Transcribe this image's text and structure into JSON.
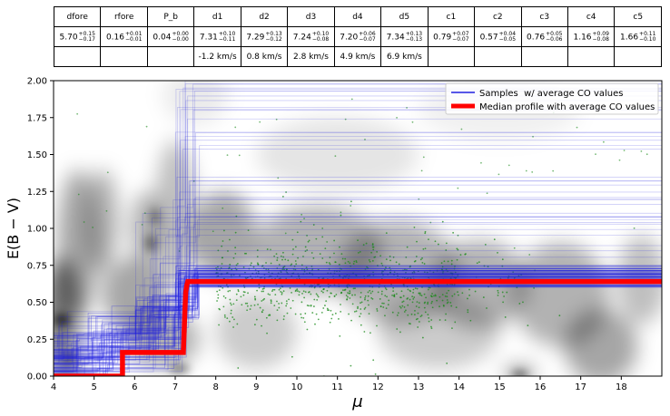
{
  "table": {
    "headers": [
      "dfore",
      "rfore",
      "P_b",
      "d1",
      "d2",
      "d3",
      "d4",
      "d5",
      "c1",
      "c2",
      "c3",
      "c4",
      "c5"
    ],
    "values": [
      {
        "v": "5.70",
        "up": "+0.15",
        "lo": "−0.17"
      },
      {
        "v": "0.16",
        "up": "+0.01",
        "lo": "−0.01"
      },
      {
        "v": "0.04",
        "up": "+0.00",
        "lo": "−0.00"
      },
      {
        "v": "7.31",
        "up": "+0.10",
        "lo": "−0.11"
      },
      {
        "v": "7.29",
        "up": "+0.13",
        "lo": "−0.12"
      },
      {
        "v": "7.24",
        "up": "+0.10",
        "lo": "−0.08"
      },
      {
        "v": "7.20",
        "up": "+0.06",
        "lo": "−0.07"
      },
      {
        "v": "7.34",
        "up": "+0.13",
        "lo": "−0.13"
      },
      {
        "v": "0.79",
        "up": "+0.07",
        "lo": "−0.07"
      },
      {
        "v": "0.57",
        "up": "+0.04",
        "lo": "−0.05"
      },
      {
        "v": "0.76",
        "up": "+0.05",
        "lo": "−0.06"
      },
      {
        "v": "1.16",
        "up": "+0.09",
        "lo": "−0.08"
      },
      {
        "v": "1.66",
        "up": "+0.11",
        "lo": "−0.10"
      }
    ],
    "velocities": [
      "",
      "",
      "",
      "-1.2 km/s",
      "0.8 km/s",
      "2.8 km/s",
      "4.9 km/s",
      "6.9 km/s",
      "",
      "",
      "",
      "",
      ""
    ]
  },
  "chart_data": {
    "type": "line",
    "xlabel": "μ",
    "ylabel": "E(B − V)",
    "xlim": [
      4,
      19
    ],
    "ylim": [
      0,
      2
    ],
    "xticks": [
      "4",
      "5",
      "6",
      "7",
      "8",
      "9",
      "10",
      "11",
      "12",
      "13",
      "14",
      "15",
      "16",
      "17",
      "18"
    ],
    "yticks": [
      "0.00",
      "0.25",
      "0.50",
      "0.75",
      "1.00",
      "1.25",
      "1.50",
      "1.75",
      "2.00"
    ],
    "legend_position": "top-right",
    "series": [
      {
        "name": "Samples  w/ average CO values",
        "color": "#1f1fe0",
        "style": "thin step lines",
        "representative_x": [
          4,
          5.7,
          5.7,
          7.2,
          7.2,
          7.3,
          7.3,
          19
        ],
        "representative_y": [
          0.0,
          0.0,
          0.16,
          0.16,
          0.57,
          0.57,
          0.64,
          0.64
        ]
      },
      {
        "name": "Median profile with average CO values",
        "color": "#ff0000",
        "style": "thick step line",
        "x": [
          4,
          5.7,
          5.7,
          7.2,
          7.22,
          7.24,
          7.26,
          7.29,
          7.31,
          19
        ],
        "y": [
          0.0,
          0.0,
          0.16,
          0.16,
          0.3,
          0.45,
          0.57,
          0.62,
          0.64,
          0.64
        ]
      }
    ],
    "background": "grayscale density map",
    "scatter_color": "#1a8a1a"
  }
}
